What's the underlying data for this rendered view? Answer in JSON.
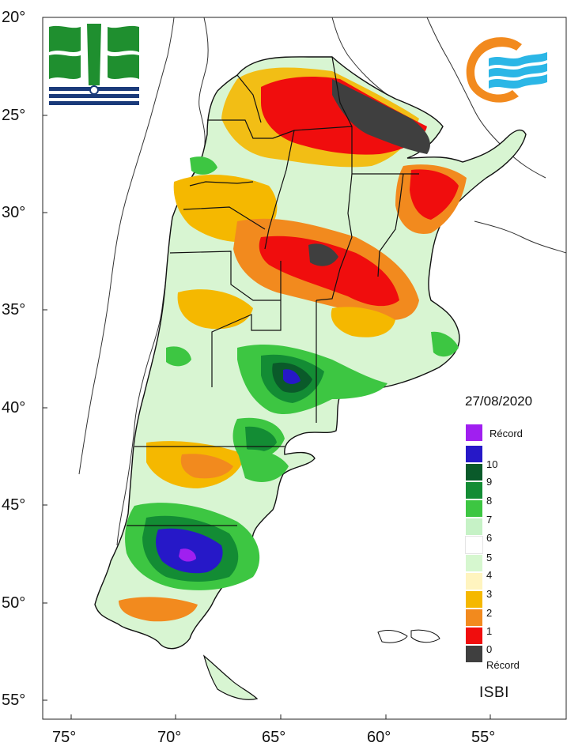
{
  "map": {
    "date": "27/08/2020",
    "index_name": "ISBI",
    "lat_ticks": [
      "20°",
      "25°",
      "30°",
      "35°",
      "40°",
      "45°",
      "50°",
      "55°"
    ],
    "lon_ticks": [
      "75°",
      "70°",
      "65°",
      "60°",
      "55°"
    ],
    "legend": [
      {
        "label": "Récord",
        "color": "#a01ff0"
      },
      {
        "label": "10",
        "color": "#2618c8"
      },
      {
        "label": "9",
        "color": "#0a5a2a"
      },
      {
        "label": "8",
        "color": "#138c34"
      },
      {
        "label": "7",
        "color": "#3dc642"
      },
      {
        "label": "6",
        "color": "#c6f2c6"
      },
      {
        "label": "5",
        "color": "#ffffff"
      },
      {
        "label": "4",
        "color": "#d6f7cf"
      },
      {
        "label": "3",
        "color": "#fff4bf"
      },
      {
        "label": "2",
        "color": "#f5b800"
      },
      {
        "label": "1",
        "color": "#f28a1e"
      },
      {
        "label": "0",
        "color": "#f00d0d"
      },
      {
        "label": "Récord",
        "color": "#3f3f3f"
      }
    ]
  }
}
